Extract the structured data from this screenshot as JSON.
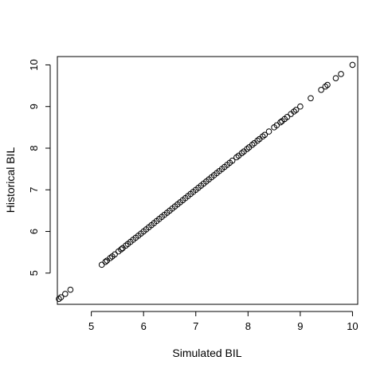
{
  "chart_data": {
    "type": "scatter",
    "title": "",
    "xlabel": "Simulated BIL",
    "ylabel": "Historical BIL",
    "xlim": [
      4.35,
      10.1
    ],
    "ylim": [
      4.25,
      10.2
    ],
    "xticks": [
      "5",
      "6",
      "7",
      "8",
      "9",
      "10"
    ],
    "yticks": [
      "5",
      "6",
      "7",
      "8",
      "9",
      "10"
    ],
    "grid": false,
    "legend": "none",
    "marker": "open-circle",
    "colors": {
      "marker": "#000000",
      "axis": "#000000",
      "background": "#ffffff"
    },
    "points": {
      "x": [
        4.38,
        4.42,
        4.5,
        4.6,
        5.2,
        5.27,
        5.3,
        5.36,
        5.4,
        5.45,
        5.52,
        5.57,
        5.6,
        5.66,
        5.7,
        5.75,
        5.8,
        5.85,
        5.9,
        5.95,
        6.0,
        6.05,
        6.1,
        6.15,
        6.2,
        6.25,
        6.3,
        6.35,
        6.4,
        6.45,
        6.5,
        6.55,
        6.6,
        6.65,
        6.7,
        6.75,
        6.8,
        6.85,
        6.9,
        6.95,
        7.0,
        7.05,
        7.1,
        7.15,
        7.2,
        7.25,
        7.3,
        7.35,
        7.4,
        7.45,
        7.5,
        7.55,
        7.6,
        7.65,
        7.7,
        7.78,
        7.82,
        7.88,
        7.92,
        7.98,
        8.02,
        8.08,
        8.12,
        8.18,
        8.22,
        8.28,
        8.32,
        8.4,
        8.5,
        8.55,
        8.62,
        8.65,
        8.7,
        8.75,
        8.82,
        8.88,
        8.92,
        9.0,
        9.2,
        9.4,
        9.48,
        9.52,
        9.68,
        9.78,
        10.0
      ],
      "y": [
        4.38,
        4.42,
        4.5,
        4.6,
        5.2,
        5.27,
        5.3,
        5.36,
        5.4,
        5.45,
        5.52,
        5.57,
        5.6,
        5.66,
        5.7,
        5.75,
        5.8,
        5.85,
        5.9,
        5.95,
        6.0,
        6.05,
        6.1,
        6.15,
        6.2,
        6.25,
        6.3,
        6.35,
        6.4,
        6.45,
        6.5,
        6.55,
        6.6,
        6.65,
        6.7,
        6.75,
        6.8,
        6.85,
        6.9,
        6.95,
        7.0,
        7.05,
        7.1,
        7.15,
        7.2,
        7.25,
        7.3,
        7.35,
        7.4,
        7.45,
        7.5,
        7.55,
        7.6,
        7.65,
        7.7,
        7.78,
        7.82,
        7.88,
        7.92,
        7.98,
        8.02,
        8.08,
        8.12,
        8.18,
        8.22,
        8.28,
        8.32,
        8.4,
        8.5,
        8.55,
        8.62,
        8.65,
        8.7,
        8.75,
        8.82,
        8.88,
        8.92,
        9.0,
        9.2,
        9.4,
        9.48,
        9.52,
        9.68,
        9.78,
        10.0
      ]
    }
  }
}
